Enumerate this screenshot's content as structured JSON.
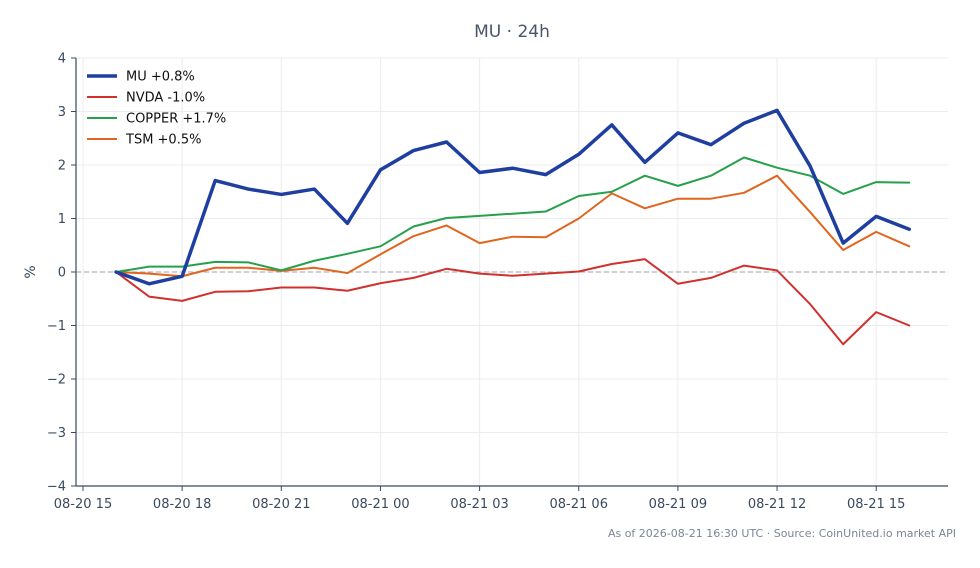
{
  "chart_data": {
    "type": "line",
    "title": "MU · 24h",
    "xlabel": "",
    "ylabel": "%",
    "ylim": [
      -4,
      4
    ],
    "y_ticks": [
      4,
      3,
      2,
      1,
      0,
      -1,
      -2,
      -3,
      -4
    ],
    "y_tick_labels": [
      "4",
      "3",
      "2",
      "1",
      "0",
      "−1",
      "−2",
      "−3",
      "−4"
    ],
    "x_ticks": [
      "08-20 15",
      "08-20 18",
      "08-20 21",
      "08-21 00",
      "08-21 03",
      "08-21 06",
      "08-21 09",
      "08-21 12",
      "08-21 15"
    ],
    "x": [
      "08-20 16",
      "08-20 17",
      "08-20 18",
      "08-20 19",
      "08-20 20",
      "08-20 21",
      "08-20 22",
      "08-20 23",
      "08-21 00",
      "08-21 01",
      "08-21 02",
      "08-21 03",
      "08-21 04",
      "08-21 05",
      "08-21 06",
      "08-21 07",
      "08-21 08",
      "08-21 09",
      "08-21 10",
      "08-21 11",
      "08-21 12",
      "08-21 13",
      "08-21 14",
      "08-21 15",
      "08-21 16"
    ],
    "grid": true,
    "zero_line": true,
    "legend_position": "top-left",
    "series": [
      {
        "name": "MU +0.8%",
        "color": "#1f3fa0",
        "width": 3.5,
        "values": [
          0.0,
          -0.22,
          -0.08,
          1.71,
          1.55,
          1.45,
          1.55,
          0.91,
          1.91,
          2.27,
          2.43,
          1.86,
          1.94,
          1.82,
          2.2,
          2.75,
          2.05,
          2.6,
          2.38,
          2.78,
          3.02,
          1.98,
          0.54,
          1.04,
          0.8
        ]
      },
      {
        "name": "NVDA -1.0%",
        "color": "#d0312d",
        "width": 2,
        "values": [
          0.0,
          -0.46,
          -0.54,
          -0.37,
          -0.36,
          -0.29,
          -0.29,
          -0.35,
          -0.21,
          -0.11,
          0.06,
          -0.03,
          -0.07,
          -0.03,
          0.01,
          0.15,
          0.24,
          -0.22,
          -0.11,
          0.12,
          0.03,
          -0.6,
          -1.35,
          -0.75,
          -1.0
        ]
      },
      {
        "name": "COPPER +1.7%",
        "color": "#27a04b",
        "width": 2,
        "values": [
          0.0,
          0.1,
          0.1,
          0.19,
          0.18,
          0.03,
          0.21,
          0.34,
          0.48,
          0.85,
          1.01,
          1.05,
          1.09,
          1.13,
          1.42,
          1.5,
          1.8,
          1.61,
          1.8,
          2.14,
          1.95,
          1.8,
          1.46,
          1.68,
          1.67
        ]
      },
      {
        "name": "TSM +0.5%",
        "color": "#e0651e",
        "width": 2,
        "values": [
          0.0,
          -0.03,
          -0.08,
          0.08,
          0.08,
          0.02,
          0.08,
          -0.02,
          0.33,
          0.67,
          0.87,
          0.54,
          0.66,
          0.65,
          1.0,
          1.47,
          1.19,
          1.37,
          1.37,
          1.48,
          1.8,
          1.12,
          0.41,
          0.75,
          0.48
        ]
      }
    ]
  },
  "footer": {
    "source_text": "As of 2026-08-21 16:30 UTC · Source: CoinUnited.io market API"
  }
}
